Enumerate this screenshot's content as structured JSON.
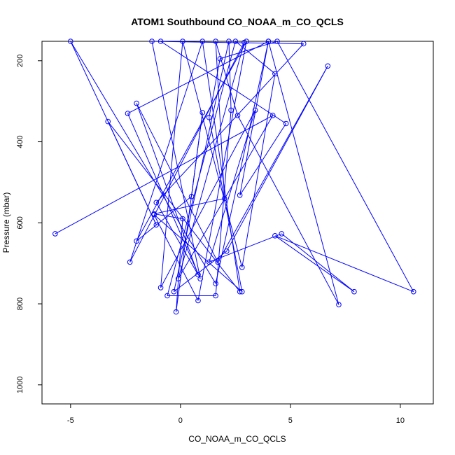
{
  "chart_data": {
    "type": "line",
    "title": "ATOM1 Southbound CO_NOAA_m_CO_QCLS",
    "xlabel": "CO_NOAA_m_CO_QCLS",
    "ylabel": "Pressure (mbar)",
    "xlim": [
      -6.3,
      11.5
    ],
    "ylim": [
      1047,
      152
    ],
    "y_reversed": true,
    "x_ticks": [
      -5,
      0,
      5,
      10
    ],
    "y_ticks": [
      200,
      400,
      600,
      800,
      1000
    ],
    "grid": false,
    "legend": "none",
    "series": [
      {
        "color": "#0000ff",
        "marker": "open-circle",
        "points": [
          [
            -5.7,
            627
          ],
          [
            4.2,
            335
          ],
          [
            -0.1,
            738
          ],
          [
            2.9,
            155
          ],
          [
            -2.3,
            697
          ],
          [
            1.0,
            152
          ],
          [
            2.7,
            770
          ],
          [
            -3.3,
            350
          ],
          [
            -1.1,
            605
          ],
          [
            -5.0,
            152
          ],
          [
            1.6,
            750
          ],
          [
            4.0,
            152
          ],
          [
            -2.4,
            330
          ],
          [
            0.9,
            738
          ],
          [
            -1.3,
            152
          ],
          [
            5.6,
            158
          ],
          [
            -1.1,
            550
          ],
          [
            0.8,
            728
          ],
          [
            -2.0,
            305
          ],
          [
            1.7,
            697
          ],
          [
            6.7,
            213
          ],
          [
            2.1,
            670
          ],
          [
            -0.3,
            770
          ],
          [
            2.2,
            152
          ],
          [
            2.3,
            322
          ],
          [
            1.6,
            780
          ],
          [
            -0.6,
            780
          ],
          [
            2.5,
            152
          ],
          [
            4.3,
            232
          ],
          [
            2.8,
            710
          ],
          [
            0.1,
            152
          ],
          [
            -0.9,
            760
          ],
          [
            3.4,
            322
          ],
          [
            1.3,
            697
          ],
          [
            4.6,
            627
          ],
          [
            7.9,
            770
          ],
          [
            4.3,
            632
          ],
          [
            10.6,
            770
          ],
          [
            4.4,
            152
          ],
          [
            1.8,
            195
          ],
          [
            1.3,
            340
          ],
          [
            2.8,
            770
          ],
          [
            -1.2,
            580
          ],
          [
            0.8,
            792
          ],
          [
            3.0,
            152
          ],
          [
            -2.0,
            645
          ],
          [
            0.5,
            535
          ],
          [
            1.0,
            328
          ],
          [
            -0.2,
            820
          ],
          [
            0.1,
            590
          ],
          [
            -1.2,
            578
          ],
          [
            2.0,
            540
          ],
          [
            1.6,
            152
          ],
          [
            2.6,
            335
          ],
          [
            7.2,
            802
          ],
          [
            4.0,
            152
          ],
          [
            2.7,
            532
          ],
          [
            4.8,
            355
          ],
          [
            -0.9,
            152
          ]
        ]
      }
    ]
  }
}
